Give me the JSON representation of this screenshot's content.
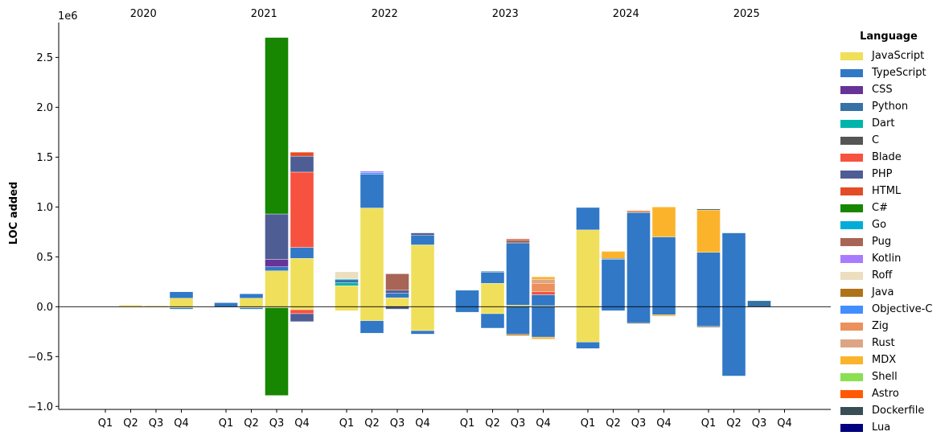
{
  "chart_data": {
    "type": "bar",
    "stacked": true,
    "ylabel": "LOC added",
    "y_exponent_label": "1e6",
    "ylim": [
      -1.03,
      2.85
    ],
    "yticks": [
      -1.0,
      -0.5,
      0.0,
      0.5,
      1.0,
      1.5,
      2.0,
      2.5
    ],
    "ytick_labels": [
      "−1.0",
      "−0.5",
      "0.0",
      "0.5",
      "1.0",
      "1.5",
      "2.0",
      "2.5"
    ],
    "years": [
      "2020",
      "2021",
      "2022",
      "2023",
      "2024",
      "2025"
    ],
    "quarters": [
      "Q1",
      "Q2",
      "Q3",
      "Q4"
    ],
    "legend_title": "Language",
    "legend_placement": "right",
    "languages": [
      {
        "name": "JavaScript",
        "color": "#f0df5a"
      },
      {
        "name": "TypeScript",
        "color": "#3178c6"
      },
      {
        "name": "CSS",
        "color": "#663399"
      },
      {
        "name": "Python",
        "color": "#3572a5"
      },
      {
        "name": "Dart",
        "color": "#00b4ab"
      },
      {
        "name": "C",
        "color": "#555555"
      },
      {
        "name": "Blade",
        "color": "#f7523f"
      },
      {
        "name": "PHP",
        "color": "#4f5d95"
      },
      {
        "name": "HTML",
        "color": "#e34c26"
      },
      {
        "name": "C#",
        "color": "#178600"
      },
      {
        "name": "Go",
        "color": "#00add8"
      },
      {
        "name": "Pug",
        "color": "#a86454"
      },
      {
        "name": "Kotlin",
        "color": "#a97bff"
      },
      {
        "name": "Roff",
        "color": "#ecdebe"
      },
      {
        "name": "Java",
        "color": "#b07219"
      },
      {
        "name": "Objective-C",
        "color": "#438eff"
      },
      {
        "name": "Zig",
        "color": "#ec915c"
      },
      {
        "name": "Rust",
        "color": "#dea584"
      },
      {
        "name": "MDX",
        "color": "#fcb32c"
      },
      {
        "name": "Shell",
        "color": "#89e051"
      },
      {
        "name": "Astro",
        "color": "#ff5a03"
      },
      {
        "name": "Dockerfile",
        "color": "#384d54"
      },
      {
        "name": "Lua",
        "color": "#000080"
      }
    ],
    "data": [
      {
        "year": "2020",
        "quarter": "Q1",
        "pos": [],
        "neg": []
      },
      {
        "year": "2020",
        "quarter": "Q2",
        "pos": [
          [
            "JavaScript",
            0.015
          ]
        ],
        "neg": []
      },
      {
        "year": "2020",
        "quarter": "Q3",
        "pos": [
          [
            "JavaScript",
            0.01
          ]
        ],
        "neg": []
      },
      {
        "year": "2020",
        "quarter": "Q4",
        "pos": [
          [
            "JavaScript",
            0.085
          ],
          [
            "TypeScript",
            0.065
          ]
        ],
        "neg": [
          [
            "JavaScript",
            0.01
          ],
          [
            "TypeScript",
            0.015
          ]
        ]
      },
      {
        "year": "2021",
        "quarter": "Q1",
        "pos": [
          [
            "TypeScript",
            0.04
          ]
        ],
        "neg": [
          [
            "TypeScript",
            0.005
          ]
        ]
      },
      {
        "year": "2021",
        "quarter": "Q2",
        "pos": [
          [
            "JavaScript",
            0.085
          ],
          [
            "TypeScript",
            0.045
          ]
        ],
        "neg": [
          [
            "JavaScript",
            0.01
          ],
          [
            "TypeScript",
            0.015
          ]
        ]
      },
      {
        "year": "2021",
        "quarter": "Q3",
        "pos": [
          [
            "JavaScript",
            0.36
          ],
          [
            "TypeScript",
            0.04
          ],
          [
            "CSS",
            0.075
          ],
          [
            "PHP",
            0.455
          ],
          [
            "C#",
            1.77
          ]
        ],
        "neg": [
          [
            "JavaScript",
            0.01
          ],
          [
            "C#",
            0.88
          ]
        ]
      },
      {
        "year": "2021",
        "quarter": "Q4",
        "pos": [
          [
            "JavaScript",
            0.485
          ],
          [
            "TypeScript",
            0.11
          ],
          [
            "Blade",
            0.755
          ],
          [
            "PHP",
            0.16
          ],
          [
            "HTML",
            0.04
          ]
        ],
        "neg": [
          [
            "JavaScript",
            0.03
          ],
          [
            "Blade",
            0.04
          ],
          [
            "PHP",
            0.08
          ]
        ]
      },
      {
        "year": "2022",
        "quarter": "Q1",
        "pos": [
          [
            "JavaScript",
            0.21
          ],
          [
            "Dart",
            0.03
          ],
          [
            "Python",
            0.03
          ],
          [
            "Go",
            0.01
          ],
          [
            "Roff",
            0.07
          ]
        ],
        "neg": [
          [
            "JavaScript",
            0.04
          ]
        ]
      },
      {
        "year": "2022",
        "quarter": "Q2",
        "pos": [
          [
            "JavaScript",
            0.99
          ],
          [
            "TypeScript",
            0.34
          ],
          [
            "Objective-C",
            0.015
          ],
          [
            "Kotlin",
            0.015
          ]
        ],
        "neg": [
          [
            "JavaScript",
            0.14
          ],
          [
            "TypeScript",
            0.125
          ]
        ]
      },
      {
        "year": "2022",
        "quarter": "Q3",
        "pos": [
          [
            "JavaScript",
            0.09
          ],
          [
            "TypeScript",
            0.045
          ],
          [
            "PHP",
            0.03
          ],
          [
            "Pug",
            0.165
          ]
        ],
        "neg": [
          [
            "PHP",
            0.025
          ]
        ]
      },
      {
        "year": "2022",
        "quarter": "Q4",
        "pos": [
          [
            "JavaScript",
            0.62
          ],
          [
            "TypeScript",
            0.095
          ],
          [
            "PHP",
            0.025
          ]
        ],
        "neg": [
          [
            "JavaScript",
            0.24
          ],
          [
            "TypeScript",
            0.035
          ]
        ]
      },
      {
        "year": "2023",
        "quarter": "Q1",
        "pos": [
          [
            "TypeScript",
            0.165
          ]
        ],
        "neg": [
          [
            "TypeScript",
            0.055
          ]
        ]
      },
      {
        "year": "2023",
        "quarter": "Q2",
        "pos": [
          [
            "JavaScript",
            0.235
          ],
          [
            "TypeScript",
            0.11
          ],
          [
            "Python",
            0.01
          ]
        ],
        "neg": [
          [
            "JavaScript",
            0.07
          ],
          [
            "TypeScript",
            0.145
          ]
        ]
      },
      {
        "year": "2023",
        "quarter": "Q3",
        "pos": [
          [
            "JavaScript",
            0.015
          ],
          [
            "TypeScript",
            0.625
          ],
          [
            "Pug",
            0.03
          ],
          [
            "HTML",
            0.01
          ]
        ],
        "neg": [
          [
            "TypeScript",
            0.275
          ],
          [
            "Java",
            0.015
          ]
        ]
      },
      {
        "year": "2023",
        "quarter": "Q4",
        "pos": [
          [
            "JavaScript",
            0.01
          ],
          [
            "TypeScript",
            0.11
          ],
          [
            "Blade",
            0.03
          ],
          [
            "Zig",
            0.085
          ],
          [
            "Rust",
            0.04
          ],
          [
            "MDX",
            0.025
          ]
        ],
        "neg": [
          [
            "TypeScript",
            0.305
          ],
          [
            "MDX",
            0.02
          ]
        ]
      },
      {
        "year": "2024",
        "quarter": "Q1",
        "pos": [
          [
            "JavaScript",
            0.77
          ],
          [
            "TypeScript",
            0.225
          ]
        ],
        "neg": [
          [
            "JavaScript",
            0.355
          ],
          [
            "TypeScript",
            0.065
          ]
        ]
      },
      {
        "year": "2024",
        "quarter": "Q2",
        "pos": [
          [
            "TypeScript",
            0.475
          ],
          [
            "Python",
            0.01
          ],
          [
            "MDX",
            0.07
          ]
        ],
        "neg": [
          [
            "TypeScript",
            0.04
          ]
        ]
      },
      {
        "year": "2024",
        "quarter": "Q3",
        "pos": [
          [
            "TypeScript",
            0.945
          ],
          [
            "Zig",
            0.02
          ]
        ],
        "neg": [
          [
            "TypeScript",
            0.16
          ],
          [
            "Dockerfile",
            0.01
          ]
        ]
      },
      {
        "year": "2024",
        "quarter": "Q4",
        "pos": [
          [
            "TypeScript",
            0.7
          ],
          [
            "MDX",
            0.3
          ]
        ],
        "neg": [
          [
            "TypeScript",
            0.08
          ],
          [
            "MDX",
            0.015
          ]
        ]
      },
      {
        "year": "2025",
        "quarter": "Q1",
        "pos": [
          [
            "TypeScript",
            0.545
          ],
          [
            "MDX",
            0.425
          ],
          [
            "Dockerfile",
            0.01
          ]
        ],
        "neg": [
          [
            "TypeScript",
            0.195
          ],
          [
            "Dockerfile",
            0.01
          ]
        ]
      },
      {
        "year": "2025",
        "quarter": "Q2",
        "pos": [
          [
            "TypeScript",
            0.74
          ]
        ],
        "neg": [
          [
            "TypeScript",
            0.695
          ]
        ]
      },
      {
        "year": "2025",
        "quarter": "Q3",
        "pos": [
          [
            "Python",
            0.06
          ]
        ],
        "neg": [
          [
            "Python",
            0.005
          ]
        ]
      },
      {
        "year": "2025",
        "quarter": "Q4",
        "pos": [],
        "neg": []
      }
    ]
  }
}
